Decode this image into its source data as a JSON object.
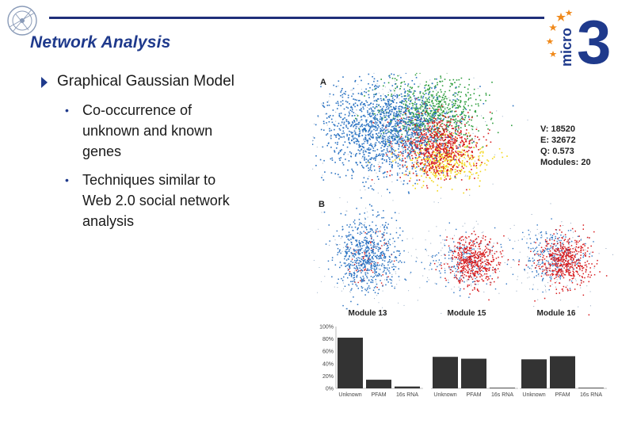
{
  "slide": {
    "title": "Network Analysis"
  },
  "logo": {
    "right_text": "micro",
    "right_digit": "3"
  },
  "bullets": {
    "main": "Graphical Gaussian Model",
    "sub": [
      "Co-occurrence of\n unknown  and known\ngenes",
      "Techniques similar to\nWeb 2.0 social network\nanalysis"
    ]
  },
  "figure": {
    "panel_a_label": "A",
    "panel_b_label": "B",
    "stats": [
      "V: 18520",
      "E: 32672",
      "Q: 0.573",
      "Modules: 20"
    ],
    "modules": [
      "Module 13",
      "Module 15",
      "Module 16"
    ],
    "colors": {
      "blue": "#2b73c2",
      "red": "#d7191c",
      "green": "#2e9e3e",
      "yellow": "#f2d61a",
      "bar": "#333333"
    }
  },
  "chart_data": {
    "type": "bar",
    "categories": [
      "Unknown",
      "PFAM",
      "16s RNA"
    ],
    "y_ticks": [
      "0%",
      "20%",
      "40%",
      "60%",
      "80%",
      "100%"
    ],
    "ylim": [
      0,
      100
    ],
    "series": [
      {
        "name": "Module 13",
        "values": [
          82,
          14,
          3
        ]
      },
      {
        "name": "Module 15",
        "values": [
          51,
          48,
          1
        ]
      },
      {
        "name": "Module 16",
        "values": [
          47,
          52,
          1
        ]
      }
    ]
  }
}
